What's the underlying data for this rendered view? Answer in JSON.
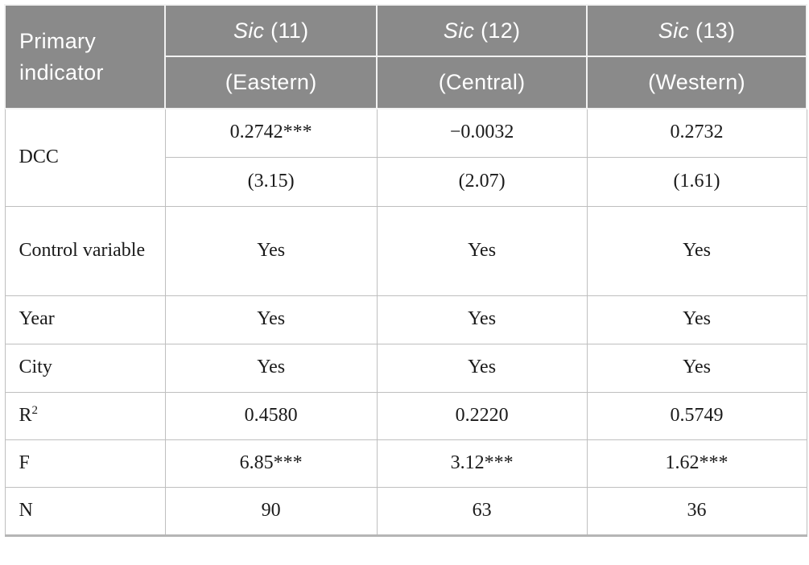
{
  "table": {
    "corner_label": "Primary indicator",
    "columns": [
      {
        "title_italic": "Sic",
        "title_rest": " (11)",
        "subtitle": "(Eastern)"
      },
      {
        "title_italic": "Sic",
        "title_rest": " (12)",
        "subtitle": "(Central)"
      },
      {
        "title_italic": "Sic",
        "title_rest": " (13)",
        "subtitle": "(Western)"
      }
    ],
    "rows": {
      "dcc": {
        "label": "DCC",
        "coef": [
          "0.2742***",
          "−0.0032",
          "0.2732"
        ],
        "tstat": [
          "(3.15)",
          "(2.07)",
          "(1.61)"
        ]
      },
      "control": {
        "label": "Control variable",
        "values": [
          "Yes",
          "Yes",
          "Yes"
        ]
      },
      "year": {
        "label": "Year",
        "values": [
          "Yes",
          "Yes",
          "Yes"
        ]
      },
      "city": {
        "label": "City",
        "values": [
          "Yes",
          "Yes",
          "Yes"
        ]
      },
      "r2": {
        "label_base": "R",
        "label_sup": "2",
        "values": [
          "0.4580",
          "0.2220",
          "0.5749"
        ]
      },
      "f": {
        "label": "F",
        "values": [
          "6.85***",
          "3.12***",
          "1.62***"
        ]
      },
      "n": {
        "label": "N",
        "values": [
          "90",
          "63",
          "36"
        ]
      }
    },
    "colors": {
      "header_bg": "#8a8a8a",
      "header_text": "#ffffff",
      "body_text": "#1a1a1a",
      "grid_line": "#bfbfbf",
      "bottom_border": "#b5b5b5"
    }
  }
}
